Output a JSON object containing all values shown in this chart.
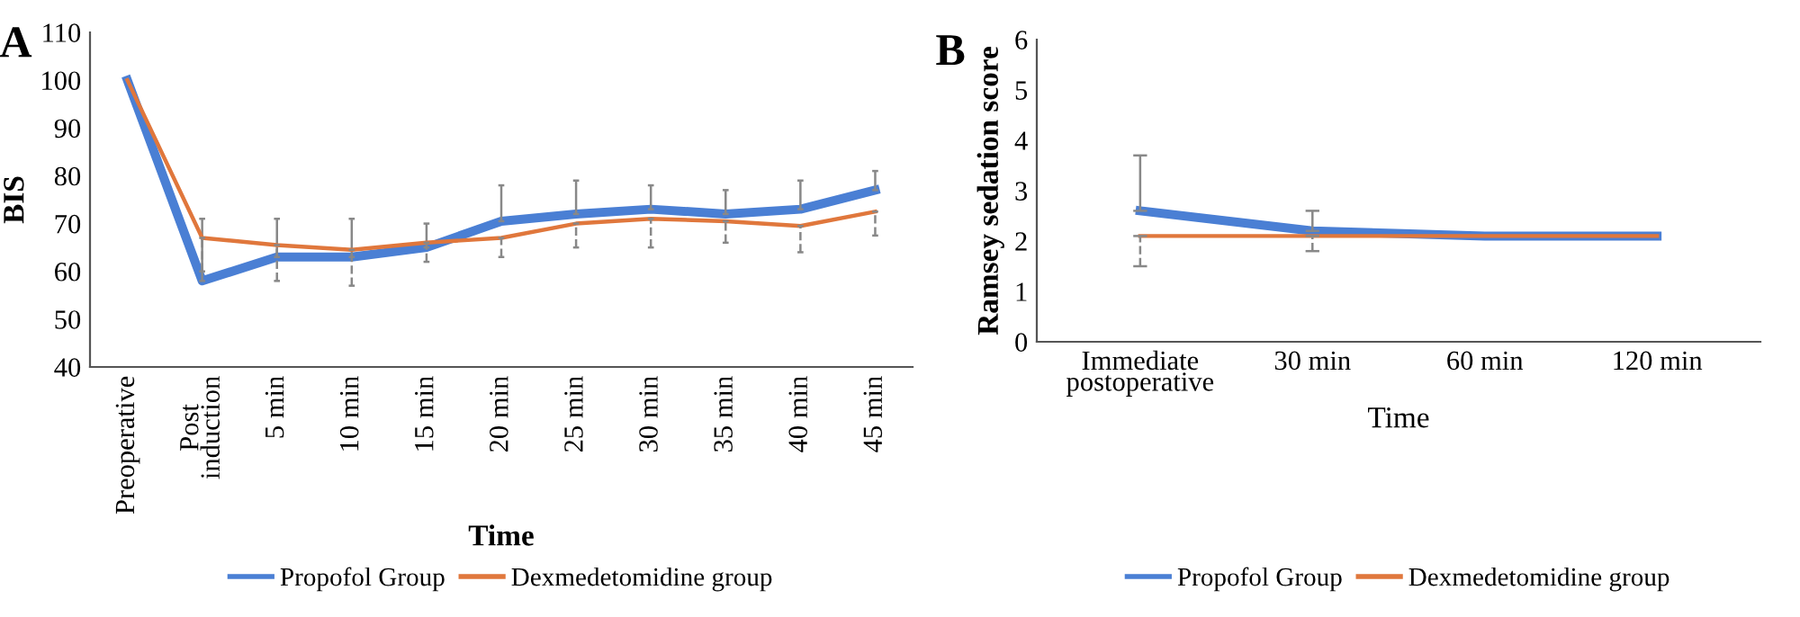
{
  "chart_data": [
    {
      "type": "line",
      "title": "A",
      "xlabel": "Time",
      "ylabel": "BIS",
      "categories": [
        "Preoperative",
        "Post\ninduction",
        "5 min",
        "10 min",
        "15 min",
        "20 min",
        "25 min",
        "30 min",
        "35 min",
        "40 min",
        "45 min"
      ],
      "ylim": [
        40,
        110
      ],
      "yticks": [
        40,
        50,
        60,
        70,
        80,
        90,
        100,
        110
      ],
      "grid": false,
      "legend": "bottom",
      "marker": "none",
      "line_style": "solid",
      "series": [
        {
          "name": "Propofol Group",
          "color": "#4a7fd4",
          "values": [
            100,
            58,
            63,
            63,
            65,
            70.5,
            72,
            73,
            72,
            73,
            77
          ],
          "errors": [
            null,
            [
              58,
              71
            ],
            [
              63,
              71
            ],
            [
              63,
              71
            ],
            [
              65,
              70
            ],
            [
              70.5,
              78
            ],
            [
              72,
              79
            ],
            [
              73,
              78
            ],
            [
              72,
              77
            ],
            [
              73,
              79
            ],
            [
              77,
              81
            ]
          ]
        },
        {
          "name": "Dexmedetomidine group",
          "color": "#e0773c",
          "values": [
            100,
            67,
            65.5,
            64.5,
            66,
            67,
            70,
            71,
            70.5,
            69.5,
            72.5
          ],
          "errors": [
            null,
            [
              60,
              67
            ],
            [
              58,
              65.5
            ],
            [
              57,
              64.5
            ],
            [
              62,
              66
            ],
            [
              63,
              67
            ],
            [
              65,
              70
            ],
            [
              65,
              71
            ],
            [
              66,
              70.5
            ],
            [
              64,
              69.5
            ],
            [
              67.5,
              72.5
            ]
          ]
        }
      ]
    },
    {
      "type": "line",
      "title": "B",
      "xlabel": "Time",
      "ylabel": "Ramsey sedation score",
      "categories": [
        "Immediate\npostoperative",
        "30 min",
        "60 min",
        "120 min"
      ],
      "ylim": [
        0,
        6
      ],
      "yticks": [
        0,
        1,
        2,
        3,
        4,
        5,
        6
      ],
      "grid": false,
      "legend": "bottom",
      "marker": "none",
      "line_style": "solid",
      "series": [
        {
          "name": "Propofol Group",
          "color": "#4a7fd4",
          "values": [
            2.6,
            2.2,
            2.1,
            2.1
          ],
          "errors": [
            [
              2.6,
              3.7
            ],
            [
              2.2,
              2.6
            ],
            null,
            null
          ]
        },
        {
          "name": "Dexmedetomidine group",
          "color": "#e0773c",
          "values": [
            2.1,
            2.1,
            2.1,
            2.1
          ],
          "errors": [
            [
              1.5,
              2.1
            ],
            [
              1.8,
              2.1
            ],
            null,
            null
          ]
        }
      ]
    }
  ]
}
